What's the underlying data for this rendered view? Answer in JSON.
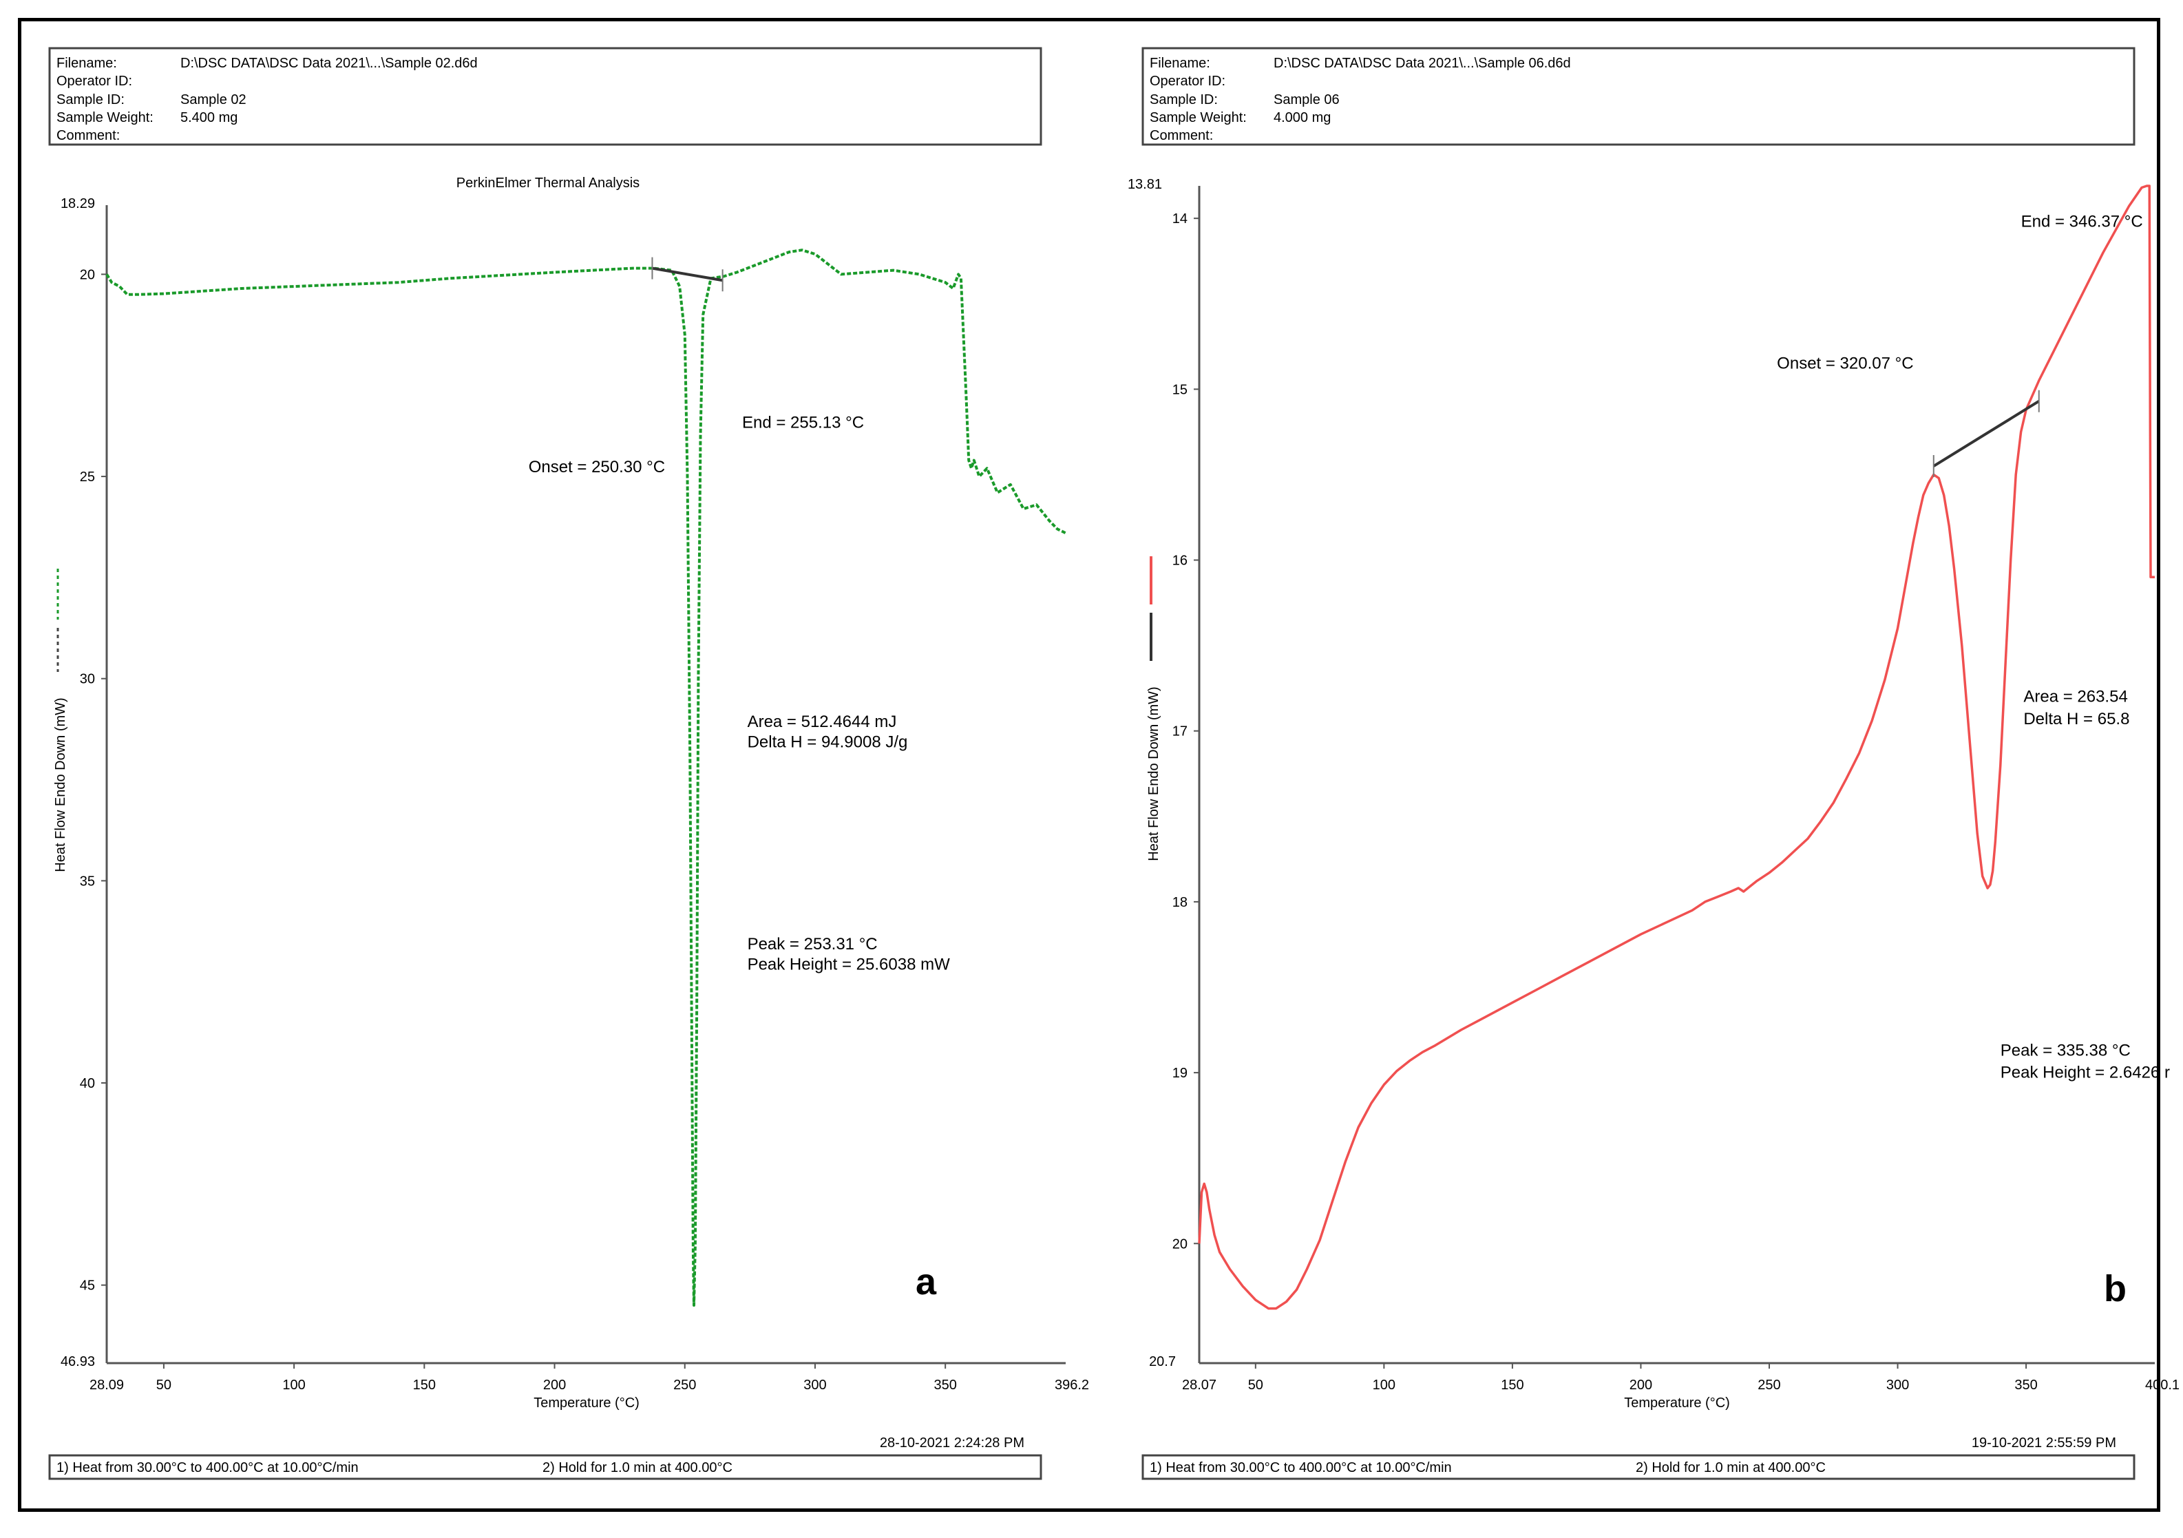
{
  "panels": [
    {
      "label": "a",
      "info": {
        "filename_label": "Filename:",
        "filename_value": "D:\\DSC DATA\\DSC Data 2021\\...\\Sample 02.d6d",
        "operator_label": "Operator ID:",
        "operator_value": "",
        "sample_id_label": "Sample ID:",
        "sample_id_value": "Sample 02",
        "weight_label": "Sample Weight:",
        "weight_value": "5.400 mg",
        "comment_label": "Comment:",
        "comment_value": ""
      },
      "timestamp": "28-10-2021 2:24:28 PM",
      "steps": [
        "1)  Heat from 30.00°C to 400.00°C at 10.00°C/min",
        "2)    Hold for 1.0 min at 400.00°C"
      ]
    },
    {
      "label": "b",
      "info": {
        "filename_label": "Filename:",
        "filename_value": "D:\\DSC DATA\\DSC Data 2021\\...\\Sample 06.d6d",
        "operator_label": "Operator ID:",
        "operator_value": "",
        "sample_id_label": "Sample ID:",
        "sample_id_value": "Sample 06",
        "weight_label": "Sample Weight:",
        "weight_value": "4.000 mg",
        "comment_label": "Comment:",
        "comment_value": ""
      },
      "timestamp": "19-10-2021 2:55:59 PM",
      "steps": [
        "1)  Heat from 30.00°C to 400.00°C at 10.00°C/min",
        "2)    Hold for 1.0 min at 400.00°C"
      ]
    }
  ],
  "chart_data": [
    {
      "type": "line",
      "title": "PerkinElmer Thermal Analysis",
      "xlabel": "Temperature (°C)",
      "ylabel": "Heat Flow Endo Down (mW)",
      "xlim": [
        28.09,
        396.2
      ],
      "ylim": [
        18.29,
        46.93
      ],
      "y_inverted": true,
      "x_min_label": "28.09",
      "x_max_label": "396.2",
      "y_min_label": "18.29",
      "y_max_label": "46.93",
      "xticks": [
        50,
        100,
        150,
        200,
        250,
        300,
        350
      ],
      "yticks": [
        20,
        25,
        30,
        35,
        40,
        45
      ],
      "series_color": "#1a9a2a",
      "series": [
        {
          "x": [
            28.09,
            30,
            33,
            36,
            40,
            50,
            80,
            120,
            140,
            160,
            200,
            230,
            238,
            245,
            248,
            250,
            251,
            252,
            252.8,
            253.2,
            253.5,
            254,
            254.6,
            255.2,
            256,
            257,
            260,
            265,
            270,
            280,
            290,
            295,
            300,
            305,
            310,
            320,
            330,
            340,
            350,
            353,
            355,
            356,
            358,
            359,
            360,
            361,
            363,
            366,
            370,
            375,
            380,
            385,
            390,
            393,
            396.2
          ],
          "y": [
            20.0,
            20.2,
            20.3,
            20.5,
            20.5,
            20.48,
            20.35,
            20.25,
            20.2,
            20.1,
            19.95,
            19.85,
            19.85,
            19.9,
            20.3,
            21.5,
            25.0,
            32.0,
            40.0,
            44.2,
            45.5,
            44.0,
            38.0,
            30.0,
            24.0,
            21.0,
            20.1,
            20.05,
            19.95,
            19.7,
            19.45,
            19.4,
            19.5,
            19.75,
            20.0,
            19.95,
            19.9,
            20.0,
            20.2,
            20.35,
            20.0,
            20.1,
            23.0,
            24.6,
            24.8,
            24.6,
            25.0,
            24.8,
            25.4,
            25.2,
            25.8,
            25.7,
            26.1,
            26.3,
            26.4
          ]
        }
      ],
      "baseline": {
        "x": [
          237.5,
          264.5
        ],
        "y": [
          19.85,
          20.15
        ]
      },
      "annotations": [
        {
          "text": "Onset = 250.30 °C",
          "x": 190,
          "y": 24.9
        },
        {
          "text": "End = 255.13 °C",
          "x": 272,
          "y": 23.8
        },
        {
          "text": "Area = 512.4644 mJ",
          "x": 274,
          "y": 31.2
        },
        {
          "text": "Delta H = 94.9008 J/g",
          "x": 274,
          "y": 31.7
        },
        {
          "text": "Peak = 253.31 °C",
          "x": 274,
          "y": 36.7
        },
        {
          "text": "Peak Height = 25.6038 mW",
          "x": 274,
          "y": 37.2
        }
      ]
    },
    {
      "type": "line",
      "xlabel": "Temperature (°C)",
      "ylabel": "Heat Flow Endo Down (mW)",
      "xlim": [
        28.07,
        400.1
      ],
      "ylim": [
        13.81,
        20.7
      ],
      "y_inverted": true,
      "x_min_label": "28.07",
      "x_max_label": "400.1",
      "y_min_label": "13.81",
      "y_max_label": "20.7",
      "xticks": [
        50,
        100,
        150,
        200,
        250,
        300,
        350
      ],
      "yticks": [
        14,
        15,
        16,
        17,
        18,
        19,
        20
      ],
      "series_color": "#f05050",
      "series": [
        {
          "x": [
            28.07,
            29,
            30,
            31,
            32,
            34,
            36,
            40,
            45,
            50,
            55,
            58,
            62,
            66,
            70,
            75,
            80,
            85,
            90,
            95,
            100,
            105,
            110,
            115,
            120,
            130,
            140,
            150,
            160,
            170,
            180,
            190,
            200,
            210,
            220,
            225,
            230,
            235,
            238,
            240,
            245,
            250,
            255,
            260,
            265,
            270,
            275,
            280,
            285,
            290,
            295,
            300,
            303,
            306,
            308,
            310,
            312,
            314,
            316,
            318,
            320,
            322,
            325,
            328,
            331,
            333,
            335,
            336,
            337,
            338,
            340,
            342,
            344,
            346,
            348,
            350,
            355,
            360,
            370,
            380,
            390,
            395,
            397,
            398,
            398.5,
            399,
            400.1
          ],
          "y": [
            20.0,
            19.7,
            19.65,
            19.7,
            19.8,
            19.95,
            20.05,
            20.15,
            20.25,
            20.33,
            20.38,
            20.38,
            20.34,
            20.27,
            20.15,
            19.98,
            19.75,
            19.52,
            19.32,
            19.18,
            19.07,
            18.99,
            18.93,
            18.88,
            18.84,
            18.75,
            18.67,
            18.59,
            18.51,
            18.43,
            18.35,
            18.27,
            18.19,
            18.12,
            18.05,
            18.0,
            17.97,
            17.94,
            17.92,
            17.94,
            17.88,
            17.83,
            17.77,
            17.7,
            17.63,
            17.53,
            17.42,
            17.28,
            17.13,
            16.94,
            16.7,
            16.4,
            16.15,
            15.9,
            15.75,
            15.62,
            15.55,
            15.5,
            15.52,
            15.62,
            15.8,
            16.05,
            16.5,
            17.05,
            17.6,
            17.85,
            17.92,
            17.9,
            17.82,
            17.65,
            17.2,
            16.6,
            16.0,
            15.5,
            15.25,
            15.12,
            14.95,
            14.8,
            14.5,
            14.2,
            13.93,
            13.82,
            13.76,
            13.78,
            16.1,
            16.1,
            16.1
          ]
        }
      ],
      "baseline": {
        "x": [
          314,
          355
        ],
        "y": [
          15.45,
          15.07
        ]
      },
      "annotations": [
        {
          "text": "Onset = 320.07 °C",
          "x": 253,
          "y": 14.88
        },
        {
          "text": "End = 346.37 °C",
          "x": 348,
          "y": 14.05
        },
        {
          "text": "Area = 263.54",
          "x": 349,
          "y": 16.83
        },
        {
          "text": "Delta H = 65.8",
          "x": 349,
          "y": 16.96
        },
        {
          "text": "Peak = 335.38 °C",
          "x": 340,
          "y": 18.9
        },
        {
          "text": "Peak Height = 2.6426 r",
          "x": 340,
          "y": 19.03
        }
      ]
    }
  ]
}
